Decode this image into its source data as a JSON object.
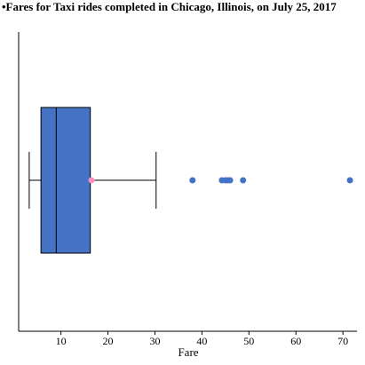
{
  "chart_data": {
    "type": "box",
    "title": "•Fares for Taxi rides completed in Chicago, Illinois, on July 25, 2017",
    "xlabel": "Fare",
    "ylabel": "",
    "xlim": [
      1,
      73
    ],
    "xticks": [
      10,
      20,
      30,
      40,
      50,
      60,
      70
    ],
    "orientation": "horizontal",
    "grid": false,
    "legend": "none",
    "box": {
      "whisker_low": 3.25,
      "q1": 5.75,
      "median": 9.0,
      "q3": 16.25,
      "whisker_high": 30.25,
      "mean": 16.5
    },
    "outliers": [
      38.0,
      44.25,
      45.0,
      45.5,
      46.0,
      48.75,
      71.5
    ],
    "colors": {
      "box_fill": "#4472c4",
      "outlier": "#4472c4",
      "mean_marker": "#ff8fbf",
      "lines": "#000000"
    }
  }
}
